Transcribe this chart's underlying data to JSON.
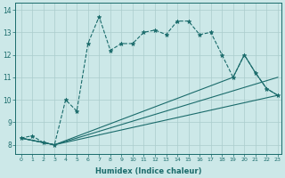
{
  "xlabel": "Humidex (Indice chaleur)",
  "bg_color": "#cce8e8",
  "grid_color": "#aacccc",
  "line_color": "#1a6b6b",
  "xlim": [
    -0.5,
    23.3
  ],
  "ylim": [
    7.6,
    14.3
  ],
  "yticks": [
    8,
    9,
    10,
    11,
    12,
    13,
    14
  ],
  "xticks": [
    0,
    1,
    2,
    3,
    4,
    5,
    6,
    7,
    8,
    9,
    10,
    11,
    12,
    13,
    14,
    15,
    16,
    17,
    18,
    19,
    20,
    21,
    22,
    23
  ],
  "line_zigzag": {
    "x": [
      0,
      1,
      2,
      3,
      4,
      5,
      6,
      7,
      8,
      9,
      10,
      11,
      12,
      13,
      14,
      15,
      16,
      17,
      18,
      19,
      20,
      21,
      22,
      23
    ],
    "y": [
      8.3,
      8.4,
      8.1,
      8.0,
      10.0,
      9.5,
      12.5,
      13.7,
      12.2,
      12.5,
      12.5,
      13.0,
      13.1,
      12.9,
      13.5,
      13.5,
      12.9,
      13.0,
      12.0,
      11.0,
      12.0,
      11.2,
      10.5,
      10.2
    ]
  },
  "line_bottom": {
    "x": [
      0,
      3,
      23
    ],
    "y": [
      8.3,
      8.0,
      10.2
    ]
  },
  "line_middle": {
    "x": [
      0,
      3,
      23
    ],
    "y": [
      8.3,
      8.0,
      11.0
    ]
  },
  "line_top": {
    "x": [
      0,
      3,
      19,
      20,
      21,
      22,
      23
    ],
    "y": [
      8.3,
      8.0,
      11.0,
      12.0,
      11.2,
      10.5,
      10.2
    ]
  }
}
